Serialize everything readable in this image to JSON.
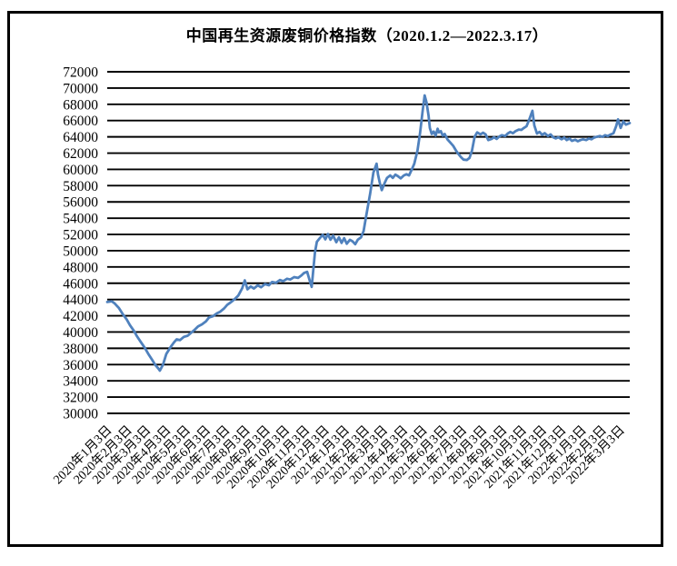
{
  "page": {
    "background": "#FFFFFF"
  },
  "chart_data": {
    "type": "line",
    "title": "中国再生资源废铜价格指数（2020.1.2—2022.3.17）",
    "xlabel": "",
    "ylabel": "",
    "x_range": [
      "2020-01-02",
      "2022-03-17"
    ],
    "ylim": [
      30000,
      72000
    ],
    "y_tick_step": 2000,
    "y_ticks": [
      72000,
      70000,
      68000,
      66000,
      64000,
      62000,
      60000,
      58000,
      56000,
      54000,
      52000,
      50000,
      48000,
      46000,
      44000,
      42000,
      40000,
      38000,
      36000,
      34000,
      32000,
      30000
    ],
    "x_tick_labels": [
      "2020年1月3日",
      "2020年2月3日",
      "2020年3月3日",
      "2020年4月3日",
      "2020年5月3日",
      "2020年6月3日",
      "2020年7月3日",
      "2020年8月3日",
      "2020年9月3日",
      "2020年10月3日",
      "2020年11月3日",
      "2020年12月3日",
      "2021年1月3日",
      "2021年2月3日",
      "2021年3月3日",
      "2021年4月3日",
      "2021年5月3日",
      "2021年6月3日",
      "2021年7月3日",
      "2021年8月3日",
      "2021年9月3日",
      "2021年10月3日",
      "2021年11月3日",
      "2021年12月3日",
      "2022年1月3日",
      "2022年2月3日",
      "2022年3月3日"
    ],
    "grid": "horizontal-black",
    "legend": "none",
    "colors": {
      "line": "#4F81BD",
      "gridline": "#000000",
      "border": "#000000",
      "background": "#FFFFFF",
      "text": "#000000"
    },
    "series": [
      {
        "points": [
          [
            "2020-01-02",
            43700
          ],
          [
            "2020-01-09",
            43780
          ],
          [
            "2020-01-13",
            43550
          ],
          [
            "2020-01-20",
            42950
          ],
          [
            "2020-01-26",
            42200
          ],
          [
            "2020-02-01",
            41550
          ],
          [
            "2020-02-06",
            40850
          ],
          [
            "2020-02-12",
            40150
          ],
          [
            "2020-02-17",
            39450
          ],
          [
            "2020-02-23",
            38750
          ],
          [
            "2020-02-29",
            38050
          ],
          [
            "2020-03-05",
            37350
          ],
          [
            "2020-03-11",
            36600
          ],
          [
            "2020-03-16",
            35950
          ],
          [
            "2020-03-21",
            35500
          ],
          [
            "2020-03-23",
            35250
          ],
          [
            "2020-03-28",
            36000
          ],
          [
            "2020-04-02",
            37300
          ],
          [
            "2020-04-09",
            38200
          ],
          [
            "2020-04-14",
            38750
          ],
          [
            "2020-04-18",
            39100
          ],
          [
            "2020-04-23",
            39000
          ],
          [
            "2020-04-29",
            39400
          ],
          [
            "2020-05-05",
            39550
          ],
          [
            "2020-05-10",
            39900
          ],
          [
            "2020-05-16",
            40300
          ],
          [
            "2020-05-21",
            40700
          ],
          [
            "2020-05-27",
            40950
          ],
          [
            "2020-06-02",
            41300
          ],
          [
            "2020-06-07",
            41800
          ],
          [
            "2020-06-13",
            41950
          ],
          [
            "2020-06-19",
            42300
          ],
          [
            "2020-06-24",
            42500
          ],
          [
            "2020-06-30",
            42900
          ],
          [
            "2020-07-05",
            43350
          ],
          [
            "2020-07-11",
            43700
          ],
          [
            "2020-07-17",
            44100
          ],
          [
            "2020-07-22",
            44500
          ],
          [
            "2020-07-28",
            45400
          ],
          [
            "2020-08-01",
            46350
          ],
          [
            "2020-08-05",
            45250
          ],
          [
            "2020-08-10",
            45600
          ],
          [
            "2020-08-15",
            45350
          ],
          [
            "2020-08-21",
            45750
          ],
          [
            "2020-08-26",
            45500
          ],
          [
            "2020-09-01",
            45900
          ],
          [
            "2020-09-07",
            45750
          ],
          [
            "2020-09-12",
            46150
          ],
          [
            "2020-09-18",
            46050
          ],
          [
            "2020-09-24",
            46400
          ],
          [
            "2020-09-29",
            46250
          ],
          [
            "2020-10-05",
            46550
          ],
          [
            "2020-10-10",
            46450
          ],
          [
            "2020-10-16",
            46750
          ],
          [
            "2020-10-22",
            46650
          ],
          [
            "2020-10-27",
            46950
          ],
          [
            "2020-10-31",
            47250
          ],
          [
            "2020-11-05",
            47400
          ],
          [
            "2020-11-09",
            46300
          ],
          [
            "2020-11-12",
            45550
          ],
          [
            "2020-11-14",
            47200
          ],
          [
            "2020-11-17",
            49800
          ],
          [
            "2020-11-20",
            51100
          ],
          [
            "2020-11-24",
            51500
          ],
          [
            "2020-11-29",
            51950
          ],
          [
            "2020-12-03",
            51400
          ],
          [
            "2020-12-07",
            52050
          ],
          [
            "2020-12-11",
            51350
          ],
          [
            "2020-12-15",
            51850
          ],
          [
            "2020-12-20",
            51050
          ],
          [
            "2020-12-24",
            51650
          ],
          [
            "2020-12-28",
            50950
          ],
          [
            "2021-01-01",
            51550
          ],
          [
            "2021-01-05",
            50850
          ],
          [
            "2021-01-10",
            51350
          ],
          [
            "2021-01-14",
            51150
          ],
          [
            "2021-01-18",
            50800
          ],
          [
            "2021-01-22",
            51350
          ],
          [
            "2021-01-27",
            51650
          ],
          [
            "2021-01-31",
            52400
          ],
          [
            "2021-02-04",
            54300
          ],
          [
            "2021-02-10",
            57000
          ],
          [
            "2021-02-15",
            59600
          ],
          [
            "2021-02-20",
            60700
          ],
          [
            "2021-02-22",
            59400
          ],
          [
            "2021-02-25",
            58300
          ],
          [
            "2021-02-28",
            57450
          ],
          [
            "2021-03-04",
            58250
          ],
          [
            "2021-03-08",
            58950
          ],
          [
            "2021-03-13",
            59250
          ],
          [
            "2021-03-17",
            58950
          ],
          [
            "2021-03-21",
            59350
          ],
          [
            "2021-03-25",
            59150
          ],
          [
            "2021-03-29",
            58900
          ],
          [
            "2021-04-03",
            59250
          ],
          [
            "2021-04-07",
            59400
          ],
          [
            "2021-04-11",
            59250
          ],
          [
            "2021-04-15",
            59950
          ],
          [
            "2021-04-19",
            60700
          ],
          [
            "2021-04-24",
            62300
          ],
          [
            "2021-04-28",
            64500
          ],
          [
            "2021-05-02",
            67200
          ],
          [
            "2021-05-05",
            69100
          ],
          [
            "2021-05-08",
            68200
          ],
          [
            "2021-05-11",
            66600
          ],
          [
            "2021-05-13",
            65100
          ],
          [
            "2021-05-16",
            64350
          ],
          [
            "2021-05-19",
            64650
          ],
          [
            "2021-05-22",
            64150
          ],
          [
            "2021-05-25",
            65000
          ],
          [
            "2021-05-27",
            64550
          ],
          [
            "2021-05-30",
            64700
          ],
          [
            "2021-06-02",
            64150
          ],
          [
            "2021-06-05",
            64350
          ],
          [
            "2021-06-09",
            63700
          ],
          [
            "2021-06-13",
            63350
          ],
          [
            "2021-06-18",
            62900
          ],
          [
            "2021-06-22",
            62350
          ],
          [
            "2021-06-26",
            61900
          ],
          [
            "2021-06-30",
            61500
          ],
          [
            "2021-07-04",
            61200
          ],
          [
            "2021-07-09",
            61150
          ],
          [
            "2021-07-13",
            61400
          ],
          [
            "2021-07-17",
            62300
          ],
          [
            "2021-07-21",
            64000
          ],
          [
            "2021-07-25",
            64550
          ],
          [
            "2021-07-30",
            64300
          ],
          [
            "2021-08-03",
            64500
          ],
          [
            "2021-08-07",
            64300
          ],
          [
            "2021-08-11",
            63600
          ],
          [
            "2021-08-16",
            63750
          ],
          [
            "2021-08-20",
            63950
          ],
          [
            "2021-08-24",
            63750
          ],
          [
            "2021-08-28",
            64050
          ],
          [
            "2021-09-01",
            64200
          ],
          [
            "2021-09-06",
            64100
          ],
          [
            "2021-09-10",
            64400
          ],
          [
            "2021-09-14",
            64600
          ],
          [
            "2021-09-18",
            64450
          ],
          [
            "2021-09-22",
            64700
          ],
          [
            "2021-09-27",
            64900
          ],
          [
            "2021-10-01",
            64850
          ],
          [
            "2021-10-05",
            65100
          ],
          [
            "2021-10-09",
            65300
          ],
          [
            "2021-10-13",
            66100
          ],
          [
            "2021-10-18",
            67200
          ],
          [
            "2021-10-21",
            65400
          ],
          [
            "2021-10-25",
            64400
          ],
          [
            "2021-10-29",
            64600
          ],
          [
            "2021-11-02",
            64250
          ],
          [
            "2021-11-06",
            64450
          ],
          [
            "2021-11-11",
            64100
          ],
          [
            "2021-11-15",
            64300
          ],
          [
            "2021-11-19",
            63950
          ],
          [
            "2021-11-23",
            63800
          ],
          [
            "2021-11-27",
            63950
          ],
          [
            "2021-12-02",
            63700
          ],
          [
            "2021-12-06",
            63900
          ],
          [
            "2021-12-10",
            63600
          ],
          [
            "2021-12-14",
            63800
          ],
          [
            "2021-12-18",
            63500
          ],
          [
            "2021-12-23",
            63650
          ],
          [
            "2021-12-27",
            63450
          ],
          [
            "2021-12-31",
            63600
          ],
          [
            "2022-01-04",
            63700
          ],
          [
            "2022-01-09",
            63600
          ],
          [
            "2022-01-13",
            63800
          ],
          [
            "2022-01-17",
            63700
          ],
          [
            "2022-01-21",
            63900
          ],
          [
            "2022-01-25",
            64000
          ],
          [
            "2022-01-30",
            64100
          ],
          [
            "2022-02-03",
            64000
          ],
          [
            "2022-02-07",
            64200
          ],
          [
            "2022-02-11",
            64100
          ],
          [
            "2022-02-16",
            64300
          ],
          [
            "2022-02-20",
            64450
          ],
          [
            "2022-02-24",
            65300
          ],
          [
            "2022-02-27",
            66150
          ],
          [
            "2022-03-03",
            65100
          ],
          [
            "2022-03-07",
            65900
          ],
          [
            "2022-03-11",
            65500
          ],
          [
            "2022-03-17",
            65700
          ]
        ]
      }
    ]
  }
}
